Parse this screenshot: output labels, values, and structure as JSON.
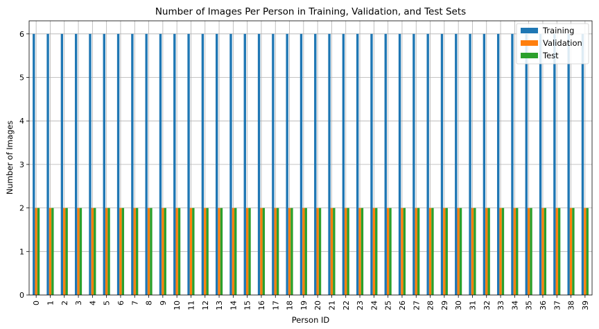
{
  "chart_data": {
    "type": "bar",
    "title": "Number of Images Per Person in Training, Validation, and Test Sets",
    "xlabel": "Person ID",
    "ylabel": "Number of Images",
    "categories": [
      "0",
      "1",
      "2",
      "3",
      "4",
      "5",
      "6",
      "7",
      "8",
      "9",
      "10",
      "11",
      "12",
      "13",
      "14",
      "15",
      "16",
      "17",
      "18",
      "19",
      "20",
      "21",
      "22",
      "23",
      "24",
      "25",
      "26",
      "27",
      "28",
      "29",
      "30",
      "31",
      "32",
      "33",
      "34",
      "35",
      "36",
      "37",
      "38",
      "39"
    ],
    "ylim": [
      0,
      6.3
    ],
    "yticks": [
      0,
      1,
      2,
      3,
      4,
      5,
      6
    ],
    "grid": true,
    "legend_position": "top-right",
    "series": [
      {
        "name": "Training",
        "color": "#1f77b4",
        "values": [
          6,
          6,
          6,
          6,
          6,
          6,
          6,
          6,
          6,
          6,
          6,
          6,
          6,
          6,
          6,
          6,
          6,
          6,
          6,
          6,
          6,
          6,
          6,
          6,
          6,
          6,
          6,
          6,
          6,
          6,
          6,
          6,
          6,
          6,
          6,
          6,
          6,
          6,
          6,
          6
        ]
      },
      {
        "name": "Validation",
        "color": "#ff7f0e",
        "values": [
          2,
          2,
          2,
          2,
          2,
          2,
          2,
          2,
          2,
          2,
          2,
          2,
          2,
          2,
          2,
          2,
          2,
          2,
          2,
          2,
          2,
          2,
          2,
          2,
          2,
          2,
          2,
          2,
          2,
          2,
          2,
          2,
          2,
          2,
          2,
          2,
          2,
          2,
          2,
          2
        ]
      },
      {
        "name": "Test",
        "color": "#2ca02c",
        "values": [
          2,
          2,
          2,
          2,
          2,
          2,
          2,
          2,
          2,
          2,
          2,
          2,
          2,
          2,
          2,
          2,
          2,
          2,
          2,
          2,
          2,
          2,
          2,
          2,
          2,
          2,
          2,
          2,
          2,
          2,
          2,
          2,
          2,
          2,
          2,
          2,
          2,
          2,
          2,
          2
        ]
      }
    ]
  }
}
